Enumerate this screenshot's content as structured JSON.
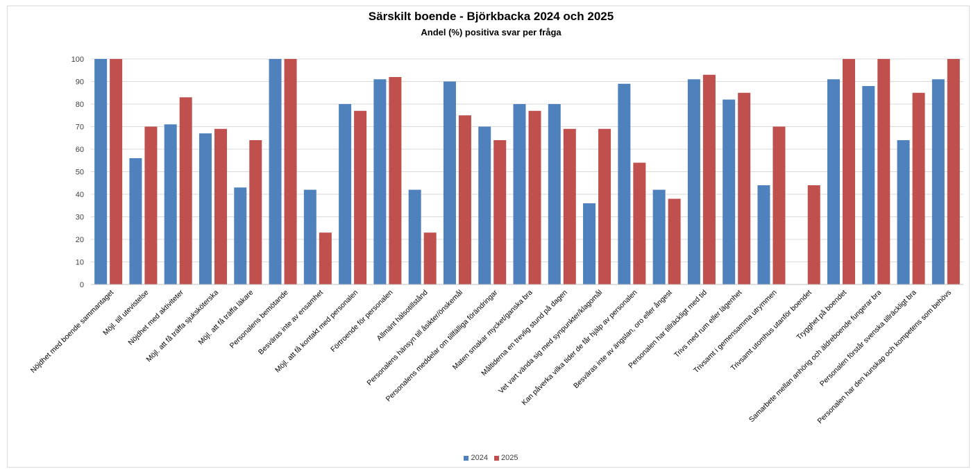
{
  "colors": {
    "s2024": "#4F81BD",
    "s2025": "#C0504D",
    "grid": "#d9d9d9",
    "axis": "#bfbfbf",
    "text": "#404040"
  },
  "chart_data": {
    "type": "bar",
    "title": "Särskilt boende - Björkbacka 2024 och 2025",
    "subtitle": "Andel (%) positiva svar per fråga",
    "ylim": [
      0,
      100
    ],
    "yticks": [
      "0",
      "10",
      "20",
      "30",
      "40",
      "50",
      "60",
      "70",
      "80",
      "90",
      "100"
    ],
    "grid": true,
    "legend_position": "bottom",
    "categories": [
      "Nöjdhet med boende sammantaget",
      "Möjl. till utevistelse",
      "Nöjdhet med aktiviteter",
      "Möjl. att få träffa sjuksköterska",
      "Möjl. att få träffa läkare",
      "Personalens bemötande",
      "Besväras inte av ensamhet",
      "Möjl. att få kontakt med personalen",
      "Förtroende för personalen",
      "Allmänt hälsotillstånd",
      "Personalens hänsyn till åsikter/önskemål",
      "Personalens meddelar om tillfälliga förändringar",
      "Maten smakar mycket/ganska bra",
      "Måltiderna en trevlig stund på dagen",
      "Vet vart vända sig med synpunkter/klagomål",
      "Kan påverka vilka tider de får hjälp av personalen",
      "Besväras inte av ängslan, oro eller ångest",
      "Personalen har tillräckligt med tid",
      "Trivs med rum eller lägenhet",
      "Trivsamt i gemensamma utrymmen",
      "Trivsamt utomhus utanför boendet",
      "Trygghet på boendet",
      "Samarbete mellan anhörig och äldreboende fungerar bra",
      "Personalen förstår svenska tillräckligt bra",
      "Personalen har den kunskap och kompetens som behövs"
    ],
    "series": [
      {
        "name": "2024",
        "values": [
          100,
          56,
          71,
          67,
          43,
          100,
          42,
          80,
          91,
          42,
          90,
          70,
          80,
          80,
          36,
          89,
          42,
          91,
          82,
          44,
          null,
          91,
          88,
          64,
          91
        ]
      },
      {
        "name": "2025",
        "values": [
          100,
          70,
          83,
          69,
          64,
          100,
          23,
          77,
          92,
          23,
          75,
          64,
          77,
          69,
          69,
          54,
          38,
          93,
          85,
          70,
          44,
          100,
          100,
          85,
          100
        ]
      }
    ]
  }
}
